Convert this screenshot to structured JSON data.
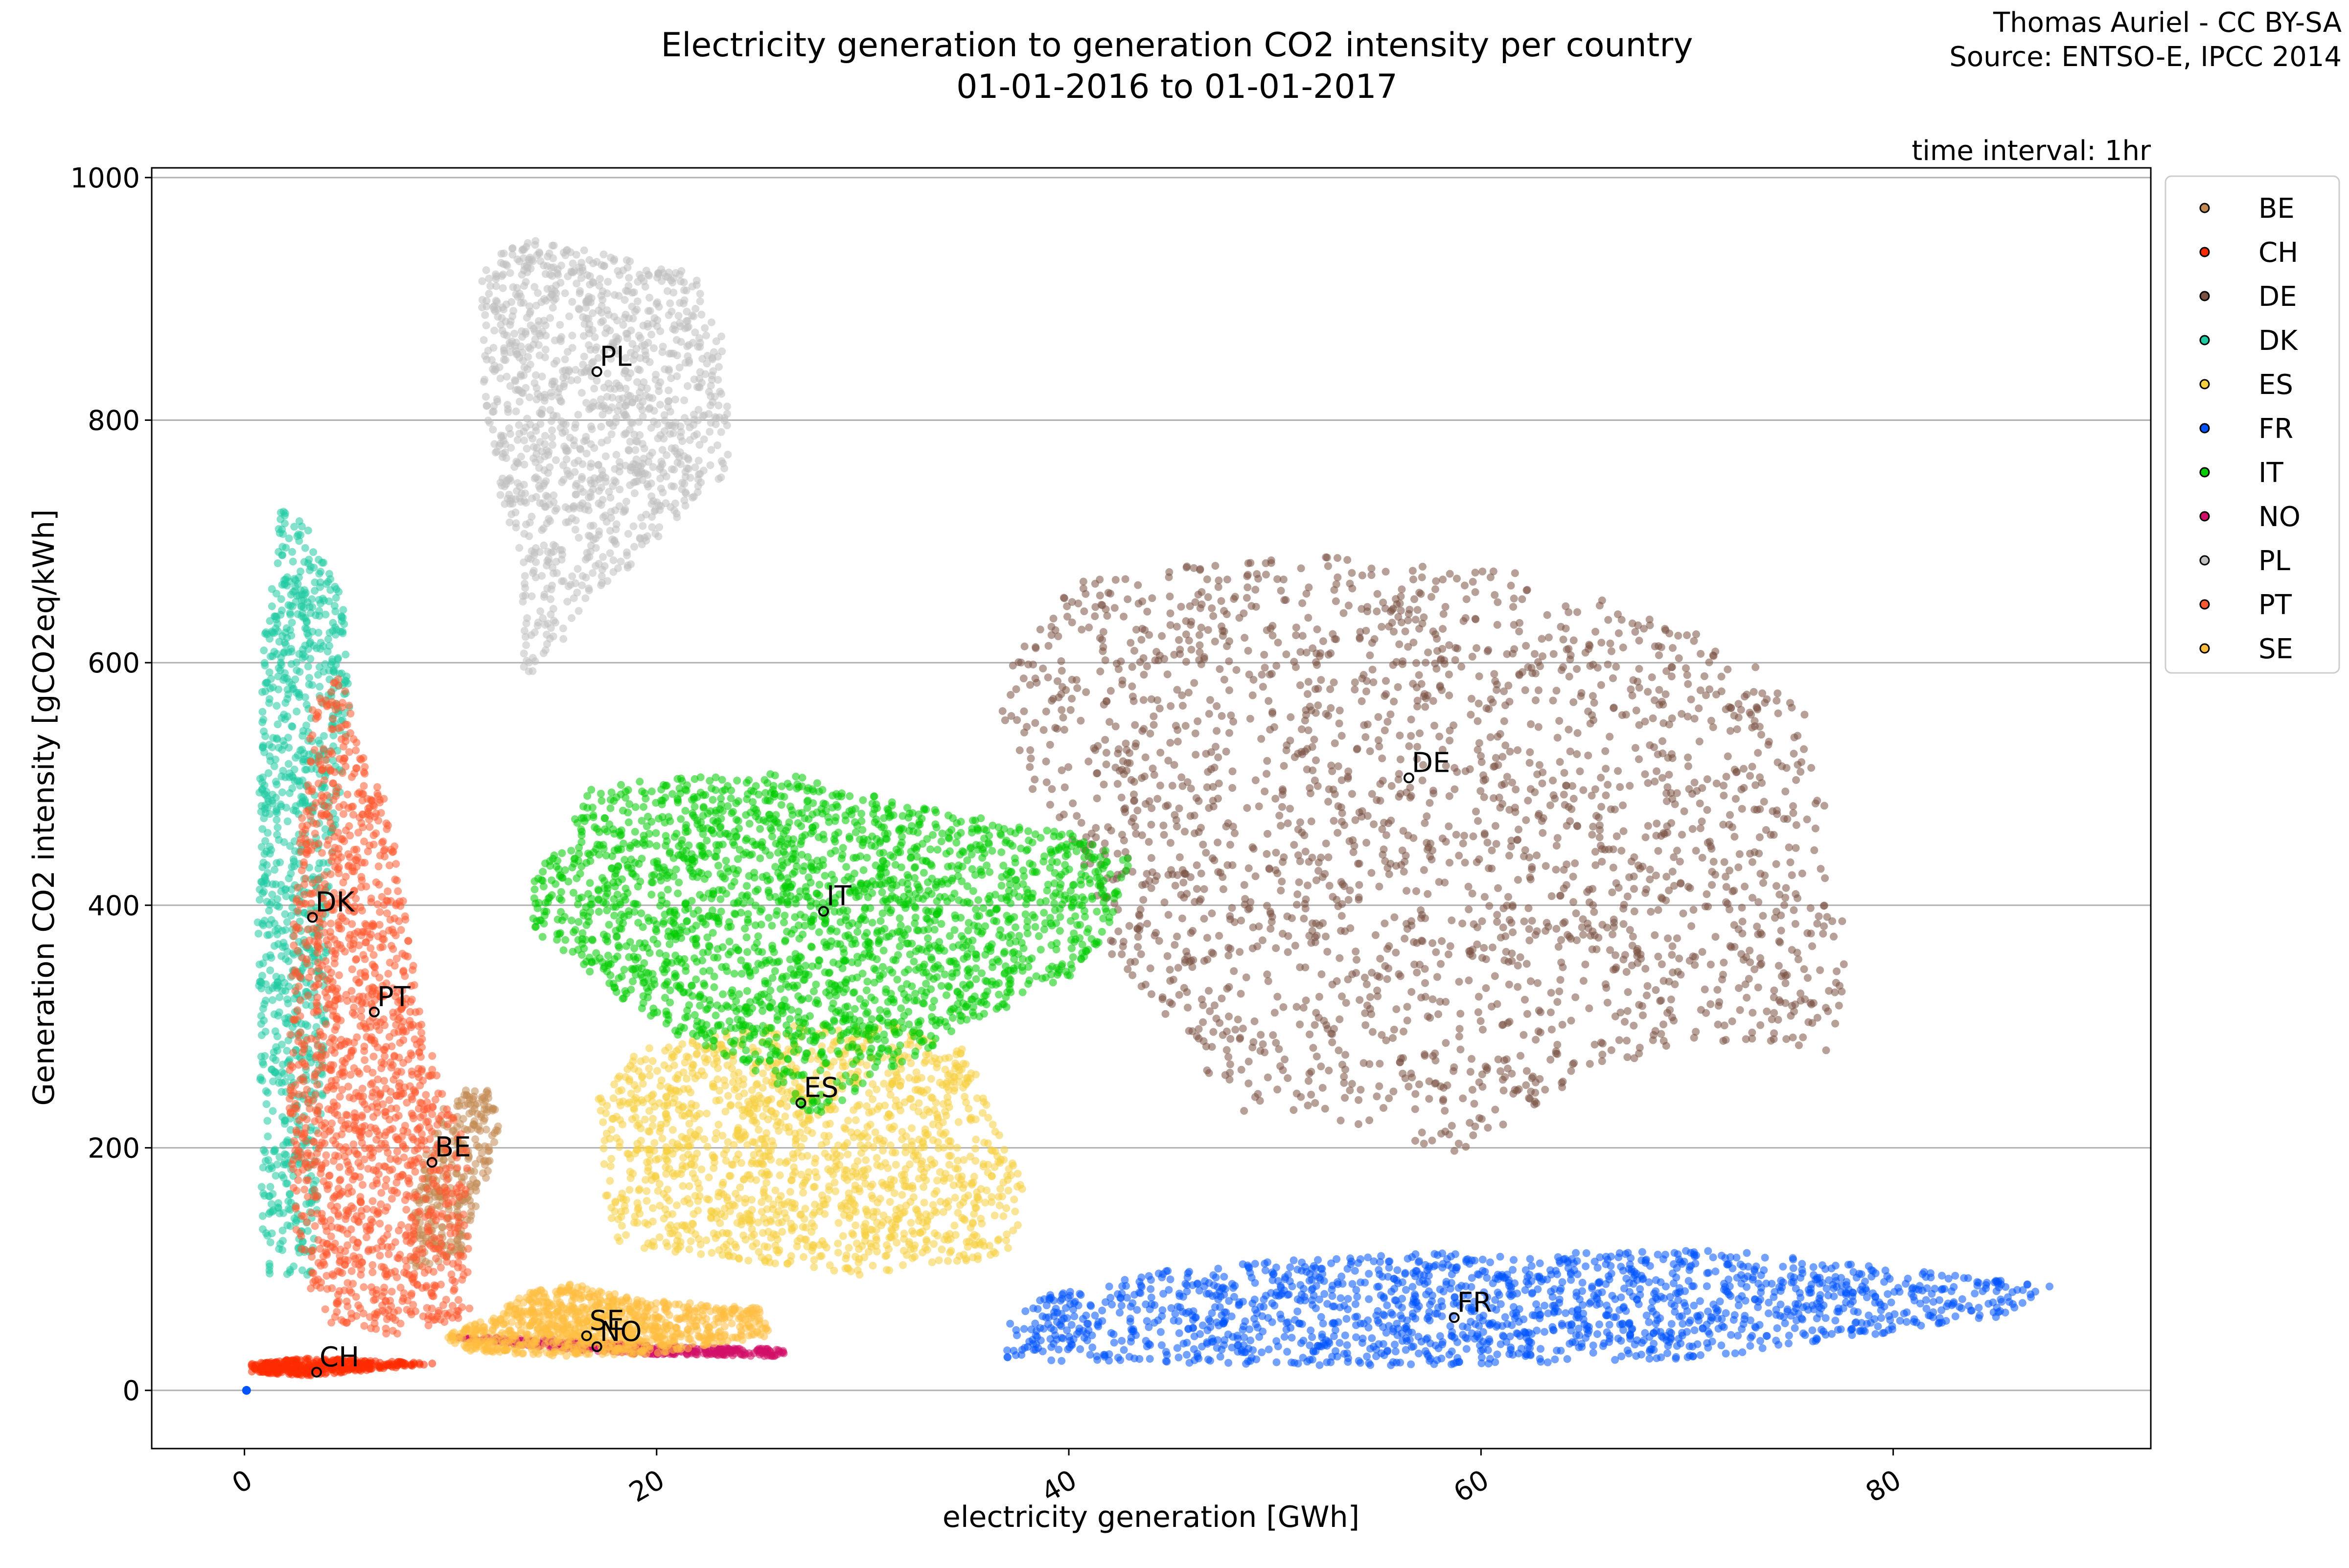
{
  "chart_data": {
    "type": "scatter",
    "title": "Electricity generation to generation CO2 intensity per country",
    "subtitle": "01-01-2016 to 01-01-2017",
    "credit_lines": [
      "Thomas Auriel - CC BY-SA",
      "Source: ENTSO-E, IPCC 2014"
    ],
    "annotation": "time interval: 1hr",
    "xlabel": "electricity generation [GWh]",
    "ylabel": "Generation CO2 intensity [gCO2eq/kWh]",
    "xlim": [
      -4.5,
      92.5
    ],
    "ylim": [
      -48,
      1008
    ],
    "xticks": [
      0,
      20,
      40,
      60,
      80
    ],
    "yticks": [
      0,
      200,
      400,
      600,
      800,
      1000
    ],
    "grid": "horizontal",
    "legend_position": "outside-right",
    "series": [
      {
        "name": "BE",
        "color": "#c28a53",
        "mean": [
          9.1,
          188
        ],
        "cloud": [
          [
            8.0,
            100
          ],
          [
            10.5,
            110
          ],
          [
            11.5,
            160
          ],
          [
            12.4,
            220
          ],
          [
            11.8,
            250
          ],
          [
            10.8,
            250
          ],
          [
            9.5,
            230
          ],
          [
            8.3,
            170
          ]
        ],
        "n": 300
      },
      {
        "name": "CH",
        "color": "#ff2c00",
        "mean": [
          3.5,
          15
        ],
        "cloud": [
          [
            0.3,
            22
          ],
          [
            3,
            27
          ],
          [
            9.4,
            22
          ],
          [
            3,
            12
          ],
          [
            0.3,
            15
          ]
        ],
        "n": 350
      },
      {
        "name": "DE",
        "color": "#7a5243",
        "mean": [
          56.5,
          505
        ],
        "cloud": [
          [
            36.5,
            585
          ],
          [
            40,
            672
          ],
          [
            52,
            688
          ],
          [
            62,
            675
          ],
          [
            72,
            615
          ],
          [
            76,
            560
          ],
          [
            77,
            450
          ],
          [
            78,
            360
          ],
          [
            77,
            280
          ],
          [
            70,
            290
          ],
          [
            64,
            250
          ],
          [
            59,
            195
          ],
          [
            54,
            215
          ],
          [
            48,
            230
          ],
          [
            45,
            300
          ],
          [
            42,
            360
          ],
          [
            40,
            460
          ],
          [
            37,
            520
          ]
        ],
        "n": 2200
      },
      {
        "name": "DK",
        "color": "#1fcba2",
        "mean": [
          3.3,
          390
        ],
        "cloud": [
          [
            0.9,
            95
          ],
          [
            3.3,
            95
          ],
          [
            3.8,
            220
          ],
          [
            4.1,
            420
          ],
          [
            5.2,
            560
          ],
          [
            4.9,
            650
          ],
          [
            3.1,
            710
          ],
          [
            1.8,
            730
          ],
          [
            0.9,
            610
          ],
          [
            0.6,
            420
          ]
        ],
        "n": 1000
      },
      {
        "name": "ES",
        "color": "#f5d040",
        "mean": [
          27,
          237
        ],
        "cloud": [
          [
            18,
            120
          ],
          [
            30,
            95
          ],
          [
            37,
            110
          ],
          [
            38,
            160
          ],
          [
            36,
            240
          ],
          [
            35,
            280
          ],
          [
            31,
            305
          ],
          [
            25,
            300
          ],
          [
            19,
            280
          ],
          [
            17,
            240
          ],
          [
            17.5,
            160
          ]
        ],
        "n": 1500
      },
      {
        "name": "FR",
        "color": "#0054ff",
        "mean": [
          58.7,
          60
        ],
        "cloud": [
          [
            37,
            25
          ],
          [
            55,
            20
          ],
          [
            70,
            25
          ],
          [
            85,
            60
          ],
          [
            88,
            85
          ],
          [
            83,
            95
          ],
          [
            72,
            115
          ],
          [
            62,
            115
          ],
          [
            52,
            110
          ],
          [
            45,
            100
          ],
          [
            39,
            80
          ],
          [
            37,
            55
          ]
        ],
        "n": 1600
      },
      {
        "name": "IT",
        "color": "#00cc00",
        "mean": [
          28.1,
          395
        ],
        "cloud": [
          [
            14,
            420
          ],
          [
            17,
            500
          ],
          [
            26,
            510
          ],
          [
            33,
            480
          ],
          [
            40,
            460
          ],
          [
            43,
            440
          ],
          [
            42,
            380
          ],
          [
            40,
            340
          ],
          [
            35,
            300
          ],
          [
            31,
            260
          ],
          [
            28,
            220
          ],
          [
            25,
            260
          ],
          [
            20,
            300
          ],
          [
            17,
            340
          ],
          [
            14,
            380
          ]
        ],
        "n": 2300
      },
      {
        "name": "NO",
        "color": "#d10f68",
        "mean": [
          17.1,
          36
        ],
        "cloud": [
          [
            10,
            44
          ],
          [
            14,
            36
          ],
          [
            19,
            30
          ],
          [
            26,
            28
          ],
          [
            26.5,
            34
          ],
          [
            20,
            37
          ],
          [
            14,
            43
          ]
        ],
        "n": 350
      },
      {
        "name": "PL",
        "color": "#c0c0c0",
        "mean": [
          17.1,
          840
        ],
        "cloud": [
          [
            11.5,
            930
          ],
          [
            14,
            950
          ],
          [
            18,
            935
          ],
          [
            22,
            920
          ],
          [
            23.5,
            860
          ],
          [
            23.5,
            750
          ],
          [
            22,
            740
          ],
          [
            19.5,
            690
          ],
          [
            16.5,
            650
          ],
          [
            15.5,
            620
          ],
          [
            13.5,
            580
          ],
          [
            13.5,
            680
          ],
          [
            12,
            760
          ],
          [
            11.5,
            850
          ]
        ],
        "n": 1200
      },
      {
        "name": "PT",
        "color": "#ff5a30",
        "mean": [
          6.3,
          312
        ],
        "cloud": [
          [
            2.5,
            110
          ],
          [
            4,
            55
          ],
          [
            7,
            45
          ],
          [
            11,
            60
          ],
          [
            10.8,
            200
          ],
          [
            9.5,
            250
          ],
          [
            8.4,
            330
          ],
          [
            7,
            480
          ],
          [
            5.8,
            520
          ],
          [
            4.6,
            595
          ],
          [
            3.2,
            560
          ],
          [
            2.4,
            400
          ],
          [
            2.1,
            250
          ]
        ],
        "n": 1500
      },
      {
        "name": "SE",
        "color": "#ffbe40",
        "mean": [
          16.6,
          45
        ],
        "cloud": [
          [
            9.5,
            45
          ],
          [
            12,
            60
          ],
          [
            13.5,
            80
          ],
          [
            16,
            88
          ],
          [
            19,
            75
          ],
          [
            25,
            68
          ],
          [
            25.5,
            45
          ],
          [
            20,
            30
          ],
          [
            15,
            28
          ],
          [
            11,
            32
          ]
        ],
        "n": 900
      }
    ],
    "outliers": [
      {
        "series": "FR",
        "x": 0.1,
        "y": 0
      }
    ]
  }
}
